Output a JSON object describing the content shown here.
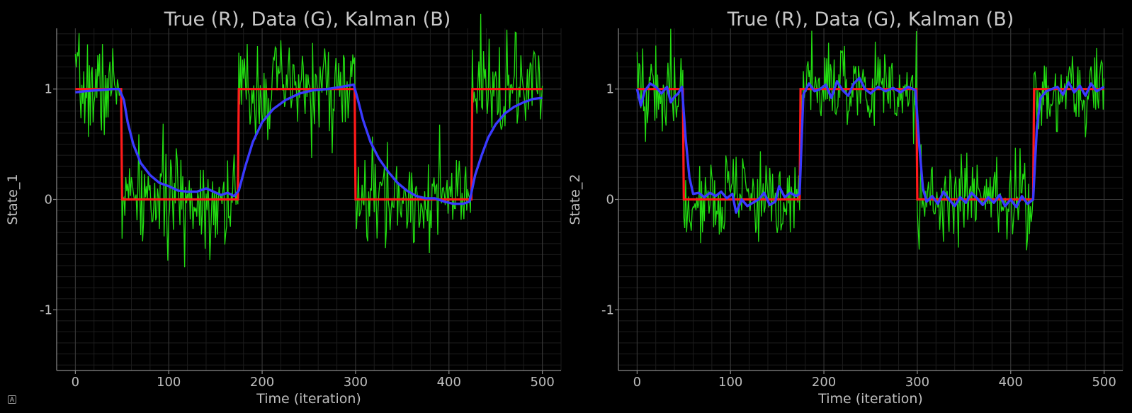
{
  "chart_data": [
    {
      "type": "line",
      "title": "True (R), Data (G), Kalman (B)",
      "xlabel": "Time (iteration)",
      "ylabel": "State_1",
      "xlim": [
        -20,
        520
      ],
      "ylim": [
        -1.55,
        1.55
      ],
      "xticks": [
        0,
        100,
        200,
        300,
        400,
        500
      ],
      "xticklabels": [
        "0",
        "100",
        "200",
        "300",
        "400",
        "500"
      ],
      "yticks": [
        1,
        0,
        -1
      ],
      "yticklabels": [
        "1",
        "0",
        "-1"
      ],
      "grid": true,
      "colors": {
        "true": "#ff1a1a",
        "data": "#22dd11",
        "kalman": "#3a3aff"
      },
      "series": [
        {
          "key": "true",
          "segments": [
            [
              0,
              1
            ],
            [
              49,
              1
            ],
            [
              50,
              0
            ],
            [
              174,
              0
            ],
            [
              175,
              1
            ],
            [
              299,
              1
            ],
            [
              300,
              0
            ],
            [
              424,
              0
            ],
            [
              425,
              1
            ],
            [
              500,
              1
            ]
          ]
        },
        {
          "key": "data",
          "noise_sd": 0.22,
          "seed": 7
        },
        {
          "key": "kalman",
          "points": [
            [
              0,
              0.97
            ],
            [
              10,
              0.98
            ],
            [
              25,
              0.99
            ],
            [
              40,
              1.0
            ],
            [
              47,
              1.0
            ],
            [
              52,
              0.9
            ],
            [
              56,
              0.7
            ],
            [
              62,
              0.5
            ],
            [
              70,
              0.33
            ],
            [
              80,
              0.22
            ],
            [
              90,
              0.15
            ],
            [
              100,
              0.12
            ],
            [
              110,
              0.08
            ],
            [
              120,
              0.07
            ],
            [
              130,
              0.07
            ],
            [
              140,
              0.1
            ],
            [
              148,
              0.07
            ],
            [
              156,
              0.04
            ],
            [
              163,
              0.06
            ],
            [
              170,
              0.03
            ],
            [
              175,
              0.08
            ],
            [
              182,
              0.3
            ],
            [
              190,
              0.52
            ],
            [
              200,
              0.7
            ],
            [
              212,
              0.82
            ],
            [
              225,
              0.9
            ],
            [
              240,
              0.96
            ],
            [
              255,
              0.99
            ],
            [
              270,
              1.0
            ],
            [
              285,
              1.02
            ],
            [
              298,
              1.04
            ],
            [
              302,
              0.92
            ],
            [
              308,
              0.72
            ],
            [
              316,
              0.52
            ],
            [
              325,
              0.37
            ],
            [
              335,
              0.25
            ],
            [
              345,
              0.15
            ],
            [
              355,
              0.08
            ],
            [
              365,
              0.03
            ],
            [
              375,
              0.01
            ],
            [
              385,
              0.01
            ],
            [
              395,
              -0.02
            ],
            [
              405,
              -0.04
            ],
            [
              415,
              -0.04
            ],
            [
              422,
              -0.02
            ],
            [
              428,
              0.22
            ],
            [
              435,
              0.4
            ],
            [
              442,
              0.56
            ],
            [
              450,
              0.68
            ],
            [
              460,
              0.78
            ],
            [
              470,
              0.84
            ],
            [
              480,
              0.88
            ],
            [
              490,
              0.91
            ],
            [
              500,
              0.92
            ]
          ]
        }
      ]
    },
    {
      "type": "line",
      "title": "True (R), Data (G), Kalman (B)",
      "xlabel": "Time (iteration)",
      "ylabel": "State_2",
      "xlim": [
        -20,
        520
      ],
      "ylim": [
        -1.55,
        1.55
      ],
      "xticks": [
        0,
        100,
        200,
        300,
        400,
        500
      ],
      "xticklabels": [
        "0",
        "100",
        "200",
        "300",
        "400",
        "500"
      ],
      "yticks": [
        1,
        0,
        -1
      ],
      "yticklabels": [
        "1",
        "0",
        "-1"
      ],
      "grid": true,
      "colors": {
        "true": "#ff1a1a",
        "data": "#22dd11",
        "kalman": "#3a3aff"
      },
      "series": [
        {
          "key": "true",
          "segments": [
            [
              0,
              1
            ],
            [
              49,
              1
            ],
            [
              50,
              0
            ],
            [
              174,
              0
            ],
            [
              175,
              1
            ],
            [
              299,
              1
            ],
            [
              300,
              0
            ],
            [
              424,
              0
            ],
            [
              425,
              1
            ],
            [
              500,
              1
            ]
          ]
        },
        {
          "key": "data",
          "noise_sd": 0.2,
          "seed": 19
        },
        {
          "key": "kalman",
          "points": [
            [
              0,
              1.0
            ],
            [
              4,
              0.85
            ],
            [
              8,
              0.98
            ],
            [
              14,
              1.05
            ],
            [
              20,
              1.02
            ],
            [
              26,
              0.96
            ],
            [
              32,
              1.02
            ],
            [
              36,
              0.88
            ],
            [
              40,
              0.93
            ],
            [
              44,
              0.96
            ],
            [
              48,
              1.02
            ],
            [
              52,
              0.55
            ],
            [
              56,
              0.2
            ],
            [
              60,
              0.05
            ],
            [
              66,
              0.06
            ],
            [
              72,
              0.02
            ],
            [
              78,
              0.06
            ],
            [
              84,
              0.03
            ],
            [
              90,
              0.07
            ],
            [
              96,
              0.01
            ],
            [
              102,
              0.05
            ],
            [
              106,
              -0.12
            ],
            [
              112,
              0.0
            ],
            [
              118,
              -0.06
            ],
            [
              124,
              -0.03
            ],
            [
              130,
              0.0
            ],
            [
              136,
              0.06
            ],
            [
              142,
              -0.05
            ],
            [
              148,
              -0.02
            ],
            [
              152,
              0.12
            ],
            [
              158,
              0.02
            ],
            [
              164,
              0.06
            ],
            [
              170,
              0.03
            ],
            [
              174,
              0.05
            ],
            [
              178,
              0.95
            ],
            [
              184,
              1.05
            ],
            [
              190,
              0.98
            ],
            [
              196,
              1.0
            ],
            [
              202,
              1.04
            ],
            [
              208,
              0.92
            ],
            [
              214,
              1.07
            ],
            [
              220,
              0.99
            ],
            [
              226,
              0.94
            ],
            [
              232,
              1.05
            ],
            [
              238,
              1.1
            ],
            [
              244,
              1.0
            ],
            [
              250,
              0.96
            ],
            [
              258,
              1.02
            ],
            [
              266,
              0.98
            ],
            [
              274,
              1.01
            ],
            [
              282,
              0.97
            ],
            [
              290,
              1.02
            ],
            [
              298,
              0.99
            ],
            [
              302,
              0.5
            ],
            [
              306,
              0.1
            ],
            [
              310,
              -0.02
            ],
            [
              316,
              0.03
            ],
            [
              322,
              -0.04
            ],
            [
              328,
              0.07
            ],
            [
              334,
              0.0
            ],
            [
              340,
              -0.06
            ],
            [
              346,
              0.02
            ],
            [
              352,
              -0.03
            ],
            [
              358,
              0.06
            ],
            [
              364,
              0.01
            ],
            [
              370,
              -0.05
            ],
            [
              376,
              0.02
            ],
            [
              382,
              -0.03
            ],
            [
              388,
              0.04
            ],
            [
              394,
              -0.06
            ],
            [
              400,
              0.0
            ],
            [
              406,
              -0.07
            ],
            [
              412,
              0.03
            ],
            [
              418,
              -0.04
            ],
            [
              424,
              0.0
            ],
            [
              428,
              0.65
            ],
            [
              432,
              0.92
            ],
            [
              438,
              0.98
            ],
            [
              444,
              1.0
            ],
            [
              450,
              1.02
            ],
            [
              456,
              0.95
            ],
            [
              462,
              1.06
            ],
            [
              468,
              0.97
            ],
            [
              474,
              1.03
            ],
            [
              480,
              0.94
            ],
            [
              486,
              1.05
            ],
            [
              492,
              0.98
            ],
            [
              500,
              1.02
            ]
          ]
        }
      ]
    }
  ],
  "ui": {
    "auto_button_label": "A"
  }
}
